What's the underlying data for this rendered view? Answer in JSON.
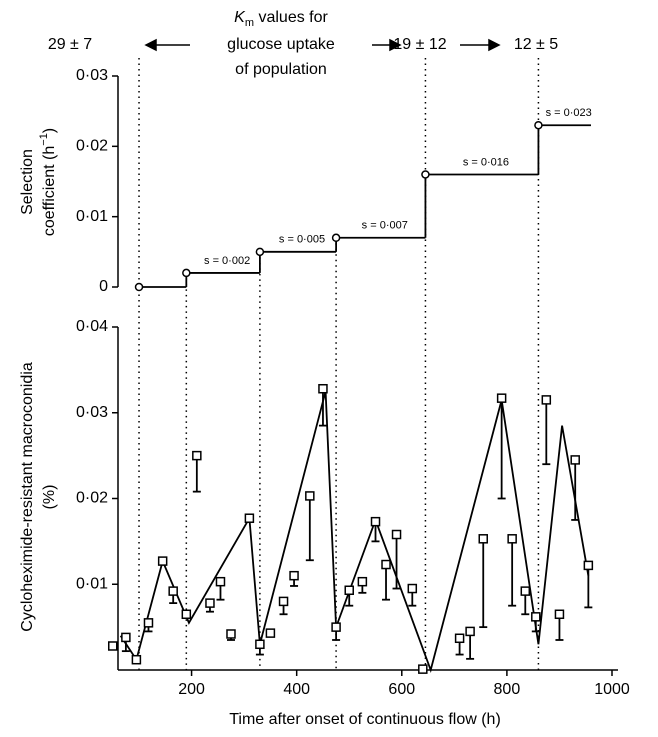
{
  "chart_data": [
    {
      "type": "step",
      "annotations": {
        "k_symbol": "K",
        "k_sub": "m",
        "line1_rest": " values for",
        "line2": "glucose uptake",
        "line3": "of population",
        "km_start": "29 ± 7",
        "km_mid": "19 ± 12",
        "km_end": "12 ± 5"
      },
      "ylabel": {
        "line1": "Selection",
        "line2": "coefficient (h",
        "sup": "−1",
        "close": ")"
      },
      "x": [
        100,
        190,
        330,
        475,
        645,
        860
      ],
      "values": [
        0,
        0.002,
        0.005,
        0.007,
        0.016,
        0.023
      ],
      "value_labels": [
        null,
        "s = 0·002",
        "s = 0·005",
        "s = 0·007",
        "s = 0·016",
        "s = 0·023"
      ],
      "line_end": 960,
      "xlim": [
        60,
        1000
      ],
      "ylim": [
        0,
        0.03
      ],
      "yticks": [
        0,
        {
          "value": 0.01,
          "label": "0·01"
        },
        {
          "value": 0.02,
          "label": "0·02"
        },
        {
          "value": 0.03,
          "label": "0·03"
        }
      ],
      "color": "#000000"
    },
    {
      "type": "errorbar",
      "ylabel": {
        "line1": "Cycloheximide-resistant macroconidia",
        "line2": "(%)"
      },
      "xlabel": "Time after onset of continuous flow (h)",
      "xlim": [
        60,
        1000
      ],
      "xticks": [
        200,
        400,
        600,
        800,
        1000
      ],
      "ylim": [
        0,
        0.04
      ],
      "yticks": [
        {
          "value": 0.01,
          "label": "0·01"
        },
        {
          "value": 0.02,
          "label": "0·02"
        },
        {
          "value": 0.03,
          "label": "0·03"
        },
        {
          "value": 0.04,
          "label": "0·04"
        }
      ],
      "x": [
        50,
        75,
        95,
        118,
        145,
        165,
        190,
        210,
        235,
        255,
        275,
        310,
        330,
        350,
        375,
        395,
        425,
        450,
        475,
        500,
        525,
        550,
        570,
        590,
        620,
        640,
        710,
        730,
        755,
        790,
        810,
        835,
        855,
        875,
        900,
        930,
        955
      ],
      "values": [
        0.0028,
        0.0038,
        0.0012,
        0.0055,
        0.0127,
        0.0092,
        0.0065,
        0.025,
        0.0078,
        0.0103,
        0.0042,
        0.0177,
        0.003,
        0.0043,
        0.008,
        0.011,
        0.0203,
        0.0328,
        0.005,
        0.0093,
        0.0103,
        0.0173,
        0.0123,
        0.0158,
        0.0095,
        0.0001,
        0.0037,
        0.0045,
        0.0153,
        0.0317,
        0.0153,
        0.0092,
        0.0062,
        0.0315,
        0.0065,
        0.0245,
        0.0122
      ],
      "lower": [
        null,
        0.0022,
        null,
        0.0045,
        null,
        0.0078,
        null,
        0.0208,
        0.0068,
        0.0082,
        0.0035,
        null,
        0.0018,
        null,
        0.0065,
        0.0098,
        0.0128,
        0.0285,
        0.0035,
        0.0075,
        0.009,
        0.015,
        0.0082,
        0.0095,
        0.0075,
        null,
        0.0018,
        0.0013,
        0.005,
        0.02,
        0.0075,
        0.0065,
        0.0045,
        0.024,
        0.0035,
        0.0175,
        0.0073
      ],
      "fit": {
        "x": [
          65,
          95,
          145,
          195,
          310,
          330,
          455,
          475,
          550,
          655,
          790,
          860,
          905,
          955
        ],
        "values": [
          0.004,
          0.0012,
          0.0127,
          0.0055,
          0.0177,
          0.003,
          0.0325,
          0.005,
          0.0175,
          0,
          0.0315,
          0.003,
          0.0285,
          0.011
        ]
      },
      "color": "#000000"
    }
  ]
}
